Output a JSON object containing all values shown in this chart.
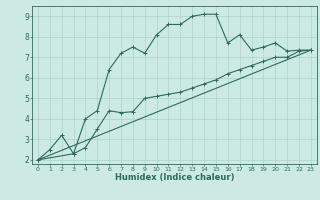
{
  "xlabel": "Humidex (Indice chaleur)",
  "background_color": "#cce9e4",
  "grid_color": "#aad4cc",
  "line_color": "#2a6b5e",
  "xlim": [
    -0.5,
    23.5
  ],
  "ylim": [
    1.8,
    9.5
  ],
  "xticks": [
    0,
    1,
    2,
    3,
    4,
    5,
    6,
    7,
    8,
    9,
    10,
    11,
    12,
    13,
    14,
    15,
    16,
    17,
    18,
    19,
    20,
    21,
    22,
    23
  ],
  "yticks": [
    2,
    3,
    4,
    5,
    6,
    7,
    8,
    9
  ],
  "line1_x": [
    0,
    1,
    2,
    3,
    4,
    5,
    6,
    7,
    8,
    9,
    10,
    11,
    12,
    13,
    14,
    15,
    16,
    17,
    18,
    19,
    20,
    21,
    22,
    23
  ],
  "line1_y": [
    2.0,
    2.5,
    3.2,
    2.3,
    4.0,
    4.4,
    6.4,
    7.2,
    7.5,
    7.2,
    8.1,
    8.6,
    8.6,
    9.0,
    9.1,
    9.1,
    7.7,
    8.1,
    7.35,
    7.5,
    7.7,
    7.3,
    7.35,
    7.35
  ],
  "line2_x": [
    0,
    3,
    4,
    5,
    6,
    7,
    8,
    9,
    10,
    11,
    12,
    13,
    14,
    15,
    16,
    17,
    18,
    19,
    20,
    21,
    22,
    23
  ],
  "line2_y": [
    2.0,
    2.3,
    2.6,
    3.5,
    4.4,
    4.3,
    4.35,
    5.0,
    5.1,
    5.2,
    5.3,
    5.5,
    5.7,
    5.9,
    6.2,
    6.4,
    6.6,
    6.8,
    7.0,
    7.0,
    7.3,
    7.35
  ],
  "line3_x": [
    0,
    23
  ],
  "line3_y": [
    2.0,
    7.35
  ]
}
